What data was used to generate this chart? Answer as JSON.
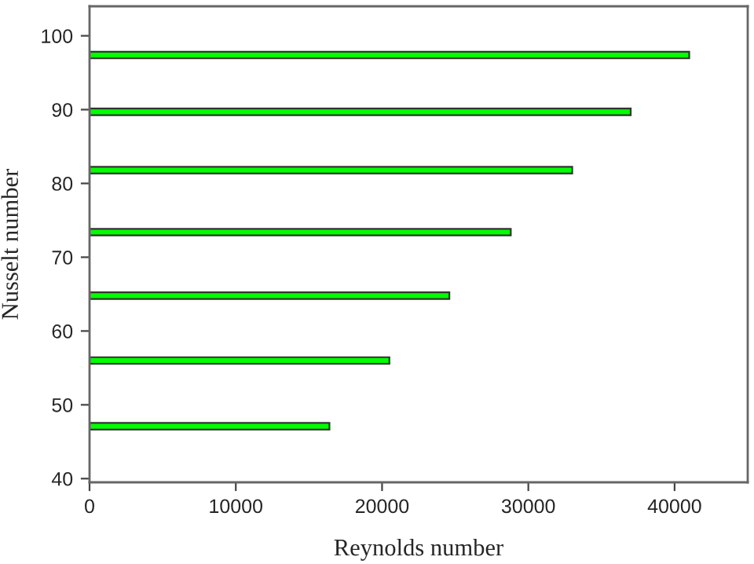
{
  "chart_data": {
    "type": "bar",
    "orientation": "horizontal",
    "xlabel": "Reynolds number",
    "ylabel": "Nusselt number",
    "x": [
      47.1,
      56.0,
      64.8,
      73.4,
      81.8,
      89.7,
      97.4
    ],
    "values": [
      16400,
      20500,
      24600,
      28800,
      33000,
      37000,
      41000
    ],
    "color": "#00ff00",
    "xlim": [
      0,
      45000
    ],
    "xticks": [
      0,
      10000,
      20000,
      30000,
      40000
    ],
    "ylim": [
      39.5,
      104
    ],
    "yticks": [
      40,
      50,
      60,
      70,
      80,
      90,
      100
    ],
    "grid": false
  }
}
